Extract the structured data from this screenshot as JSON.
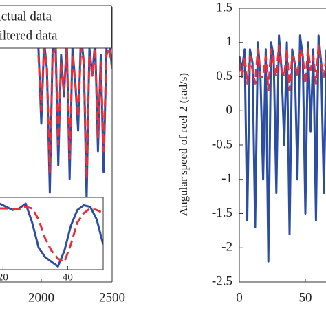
{
  "chart_data": [
    {
      "type": "line",
      "x": [
        1980,
        2000,
        2020,
        2040,
        2060,
        2080,
        2100,
        2120,
        2140,
        2160,
        2180,
        2200,
        2220,
        2240,
        2260,
        2280,
        2300,
        2320,
        2340,
        2360,
        2380,
        2400,
        2420,
        2440,
        2460,
        2480,
        2500
      ],
      "series": [
        {
          "name": "Actual data",
          "color": "#2b4ea2",
          "values": [
            0.9,
            -0.2,
            1.0,
            0.6,
            -1.2,
            0.9,
            1.1,
            -0.8,
            0.8,
            0.2,
            1.0,
            -1.0,
            0.9,
            0.4,
            -0.3,
            1.1,
            0.7,
            -1.3,
            0.9,
            0.5,
            1.0,
            -0.6,
            0.8,
            -0.9,
            0.9,
            1.0,
            0.6
          ]
        },
        {
          "name": "Filtered data",
          "color": "#e8303a",
          "dashed": true,
          "values": [
            0.8,
            0.0,
            0.9,
            0.6,
            -0.9,
            0.8,
            0.9,
            -0.5,
            0.7,
            0.3,
            0.9,
            -0.7,
            0.8,
            0.4,
            -0.1,
            0.9,
            0.7,
            -1.0,
            0.8,
            0.5,
            0.9,
            -0.4,
            0.7,
            -0.6,
            0.8,
            0.9,
            0.6
          ]
        }
      ],
      "xlim": [
        0,
        2500
      ],
      "ylim": [
        -2.5,
        1.5
      ],
      "xticks": [
        2000,
        2500
      ],
      "legend": "upper right"
    },
    {
      "type": "line",
      "x": [
        19,
        21,
        23,
        25,
        27,
        29,
        31,
        33,
        35,
        37,
        39,
        41,
        43,
        45,
        47,
        49,
        51
      ],
      "series": [
        {
          "color": "#2b4ea2",
          "values": [
            0.9,
            0.8,
            0.7,
            0.75,
            0.9,
            0.3,
            -0.5,
            -0.8,
            -0.95,
            -1.1,
            -0.6,
            0.2,
            0.7,
            0.85,
            0.8,
            0.4,
            -0.4
          ]
        },
        {
          "color": "#e8303a",
          "dashed": true,
          "values": [
            0.75,
            0.75,
            0.72,
            0.72,
            0.8,
            0.75,
            0.4,
            -0.2,
            -0.6,
            -0.85,
            -0.95,
            -0.4,
            0.3,
            0.6,
            0.75,
            0.7,
            0.6
          ]
        }
      ],
      "xlim": [
        18,
        51
      ],
      "ylim": [
        -1.2,
        1.1
      ],
      "xticks": [
        20,
        40
      ]
    },
    {
      "type": "line",
      "y_label": "Angular speed of reel 2 (rad/s)",
      "x": [
        0,
        2,
        4,
        6,
        8,
        10,
        12,
        14,
        16,
        18,
        20,
        22,
        24,
        26,
        28,
        30,
        32,
        34,
        36,
        38,
        40,
        42,
        44,
        46,
        48,
        50,
        52,
        54,
        56,
        58,
        60,
        62,
        64,
        66
      ],
      "series": [
        {
          "color": "#2b4ea2",
          "values": [
            0.8,
            0.6,
            0.9,
            -1.6,
            0.9,
            0.7,
            -1.7,
            1.0,
            0.5,
            -1.0,
            0.9,
            -2.2,
            1.0,
            0.8,
            -1.2,
            1.1,
            0.6,
            -0.5,
            1.0,
            -1.8,
            0.9,
            0.7,
            -1.0,
            1.1,
            0.8,
            -1.5,
            1.0,
            -0.3,
            0.9,
            -1.6,
            1.1,
            0.7,
            -1.2,
            0.9
          ]
        },
        {
          "color": "#e8303a",
          "dashed": true,
          "values": [
            0.7,
            0.5,
            0.8,
            0.4,
            0.8,
            0.6,
            0.4,
            0.9,
            0.5,
            0.5,
            0.8,
            0.3,
            0.9,
            0.7,
            0.5,
            0.95,
            0.6,
            0.5,
            0.9,
            0.3,
            0.8,
            0.7,
            0.5,
            0.9,
            0.8,
            0.4,
            0.9,
            0.6,
            0.8,
            0.4,
            0.95,
            0.7,
            0.5,
            0.8
          ]
        }
      ],
      "xlim": [
        0,
        100
      ],
      "ylim": [
        -2.5,
        1.5
      ],
      "xticks": [
        0,
        50
      ],
      "yticks": [
        -2.5,
        -2,
        -1.5,
        -1,
        -0.5,
        0,
        0.5,
        1,
        1.5
      ]
    }
  ]
}
